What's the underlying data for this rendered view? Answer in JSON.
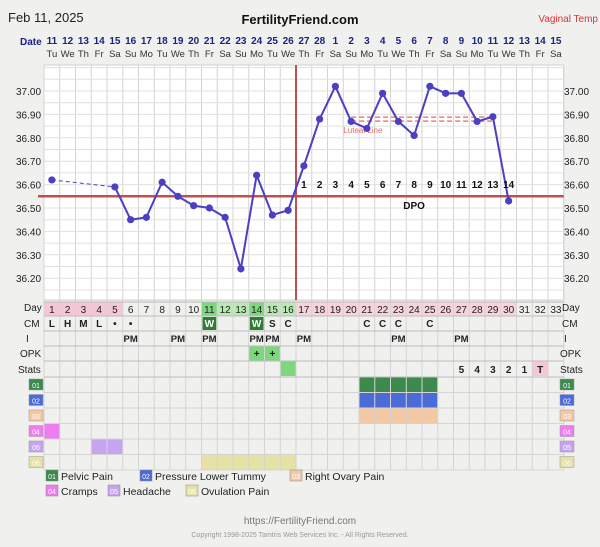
{
  "header": {
    "date": "Feb 11, 2025",
    "site": "FertilityFriend.com",
    "temp_type": "Vaginal Temp"
  },
  "row_labels": {
    "date": "Date",
    "day": "Day",
    "cm": "CM",
    "intercourse": "I",
    "opk": "OPK",
    "stats": "Stats"
  },
  "dates": [
    "11",
    "12",
    "13",
    "14",
    "15",
    "16",
    "17",
    "18",
    "19",
    "20",
    "21",
    "22",
    "23",
    "24",
    "25",
    "26",
    "27",
    "28",
    "1",
    "2",
    "3",
    "4",
    "5",
    "6",
    "7",
    "8",
    "9",
    "10",
    "11",
    "12",
    "13",
    "14",
    "15"
  ],
  "weekdays": [
    "Tu",
    "We",
    "Th",
    "Fr",
    "Sa",
    "Su",
    "Mo",
    "Tu",
    "We",
    "Th",
    "Fr",
    "Sa",
    "Su",
    "Mo",
    "Tu",
    "We",
    "Th",
    "Fr",
    "Sa",
    "Su",
    "Mo",
    "Tu",
    "We",
    "Th",
    "Fr",
    "Sa",
    "Su",
    "Mo",
    "Tu",
    "We",
    "Th",
    "Fr",
    "Sa"
  ],
  "days": [
    "1",
    "2",
    "3",
    "4",
    "5",
    "6",
    "7",
    "8",
    "9",
    "10",
    "11",
    "12",
    "13",
    "14",
    "15",
    "16",
    "17",
    "18",
    "19",
    "20",
    "21",
    "22",
    "23",
    "24",
    "25",
    "26",
    "27",
    "28",
    "29",
    "30",
    "31",
    "32",
    "33"
  ],
  "cm": [
    "L",
    "H",
    "M",
    "L",
    "•",
    "•",
    "",
    "",
    "",
    "",
    "W",
    "",
    "",
    "W",
    "S",
    "C",
    "",
    "",
    "",
    "",
    "C",
    "C",
    "C",
    "",
    "C",
    "",
    "",
    "",
    "",
    "",
    "",
    "",
    ""
  ],
  "intercourse": [
    "",
    "",
    "",
    "",
    "",
    "PM",
    "",
    "",
    "PM",
    "",
    "PM",
    "",
    "",
    "PM",
    "PM",
    "",
    "PM",
    "",
    "",
    "",
    "",
    "",
    "PM",
    "",
    "",
    "",
    "PM",
    "",
    "",
    "",
    "",
    "",
    ""
  ],
  "opk": [
    "",
    "",
    "",
    "",
    "",
    "",
    "",
    "",
    "",
    "",
    "",
    "",
    "",
    "+",
    "+",
    "",
    "",
    "",
    "",
    "",
    "",
    "",
    "",
    "",
    "",
    "",
    "",
    "",
    "",
    "",
    "",
    "",
    ""
  ],
  "stats": [
    "",
    "",
    "",
    "",
    "",
    "",
    "",
    "",
    "",
    "",
    "",
    "",
    "",
    "",
    "",
    "",
    "",
    "",
    "",
    "",
    "",
    "",
    "",
    "",
    "",
    "",
    "5",
    "4",
    "3",
    "2",
    "1",
    "T",
    ""
  ],
  "dpo_numbers": [
    "1",
    "2",
    "3",
    "4",
    "5",
    "6",
    "7",
    "8",
    "9",
    "10",
    "11",
    "12",
    "13",
    "14"
  ],
  "dpo_label": "DPO",
  "luteal_label": "Luteal Line",
  "symptom_codes": [
    "01",
    "02",
    "03",
    "04",
    "05",
    "06"
  ],
  "legend": [
    {
      "code": "01",
      "label": "Pelvic Pain",
      "color": "#3c8a4e"
    },
    {
      "code": "02",
      "label": "Pressure Lower Tummy",
      "color": "#4a6bd8"
    },
    {
      "code": "03",
      "label": "Right Ovary Pain",
      "color": "#f3c9a4"
    },
    {
      "code": "04",
      "label": "Cramps",
      "color": "#ee7ef0"
    },
    {
      "code": "05",
      "label": "Headache",
      "color": "#c6a4f0"
    },
    {
      "code": "06",
      "label": "Ovulation Pain",
      "color": "#e5e2a6"
    }
  ],
  "symptoms": [
    {
      "code": "01",
      "days": [
        21,
        22,
        23,
        24,
        25
      ]
    },
    {
      "code": "02",
      "days": [
        21,
        22,
        23,
        24,
        25
      ]
    },
    {
      "code": "03",
      "days": [
        21,
        22,
        23,
        24,
        25
      ]
    },
    {
      "code": "04",
      "days": [
        1
      ]
    },
    {
      "code": "05",
      "days": [
        4,
        5
      ]
    },
    {
      "code": "06",
      "days": [
        11,
        12,
        13,
        14,
        15,
        16
      ]
    }
  ],
  "footer": {
    "url": "https://FertilityFriend.com",
    "copyright": "Copyright 1998-2025 Tamtris Web Services Inc. - All Rights Reserved."
  },
  "colors": {
    "line": "#4b3fc2",
    "coverline": "#c0504d",
    "ovulation": "#c0504d",
    "luteal": "#e87e7e",
    "period": "#f4c6d6",
    "fertile_green": "#7ed67e",
    "fertile_light": "#b9e8b2",
    "day_after": "#f7d3db"
  },
  "chart_data": {
    "type": "line",
    "title": "",
    "x": [
      1,
      2,
      3,
      4,
      5,
      6,
      7,
      8,
      9,
      10,
      11,
      12,
      13,
      14,
      15,
      16,
      17,
      18,
      19,
      20,
      21,
      22,
      23,
      24,
      25,
      26,
      27,
      28,
      29,
      30,
      31,
      32,
      33
    ],
    "series": [
      {
        "name": "",
        "values": [
          36.62,
          null,
          null,
          null,
          36.59,
          36.45,
          36.46,
          36.61,
          36.55,
          36.51,
          36.5,
          36.46,
          36.24,
          36.64,
          36.47,
          36.49,
          36.68,
          36.88,
          37.02,
          36.87,
          36.84,
          36.99,
          36.87,
          36.81,
          37.02,
          36.99,
          36.99,
          36.87,
          36.89,
          36.53,
          null,
          null,
          null
        ],
        "dashed_segment": [
          1,
          5
        ]
      }
    ],
    "ylim": [
      36.1,
      37.1
    ],
    "yticks": [
      "37.00",
      "36.90",
      "36.80",
      "36.70",
      "36.60",
      "36.50",
      "36.40",
      "36.30",
      "36.20"
    ],
    "coverline": 36.55,
    "ovulation_day": 16,
    "luteal_line": {
      "value": 36.88,
      "from_day": 20,
      "to_day": 29
    },
    "grid": true
  }
}
